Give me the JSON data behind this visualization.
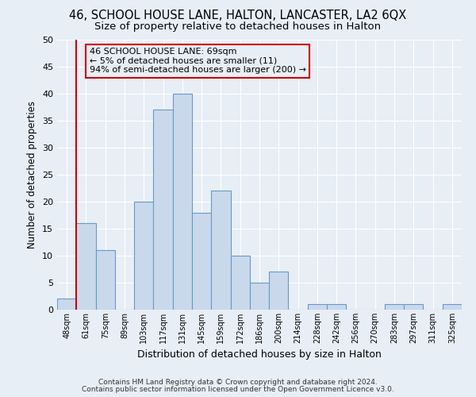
{
  "title": "46, SCHOOL HOUSE LANE, HALTON, LANCASTER, LA2 6QX",
  "subtitle": "Size of property relative to detached houses in Halton",
  "xlabel": "Distribution of detached houses by size in Halton",
  "ylabel": "Number of detached properties",
  "bin_labels": [
    "48sqm",
    "61sqm",
    "75sqm",
    "89sqm",
    "103sqm",
    "117sqm",
    "131sqm",
    "145sqm",
    "159sqm",
    "172sqm",
    "186sqm",
    "200sqm",
    "214sqm",
    "228sqm",
    "242sqm",
    "256sqm",
    "270sqm",
    "283sqm",
    "297sqm",
    "311sqm",
    "325sqm"
  ],
  "bar_heights": [
    2,
    16,
    11,
    0,
    20,
    37,
    40,
    18,
    22,
    10,
    5,
    7,
    0,
    1,
    1,
    0,
    0,
    1,
    1,
    0,
    1
  ],
  "bar_color": "#c9d9eb",
  "bar_edgecolor": "#6699cc",
  "ylim": [
    0,
    50
  ],
  "yticks": [
    0,
    5,
    10,
    15,
    20,
    25,
    30,
    35,
    40,
    45,
    50
  ],
  "vline_x": 0.5,
  "vline_color": "#cc0000",
  "annotation_title": "46 SCHOOL HOUSE LANE: 69sqm",
  "annotation_line1": "← 5% of detached houses are smaller (11)",
  "annotation_line2": "94% of semi-detached houses are larger (200) →",
  "annotation_box_color": "#cc0000",
  "footer1": "Contains HM Land Registry data © Crown copyright and database right 2024.",
  "footer2": "Contains public sector information licensed under the Open Government Licence v3.0.",
  "bg_color": "#e8eef5",
  "grid_color": "#ffffff",
  "title_fontsize": 10.5,
  "subtitle_fontsize": 9.5,
  "annotation_fontsize": 8
}
